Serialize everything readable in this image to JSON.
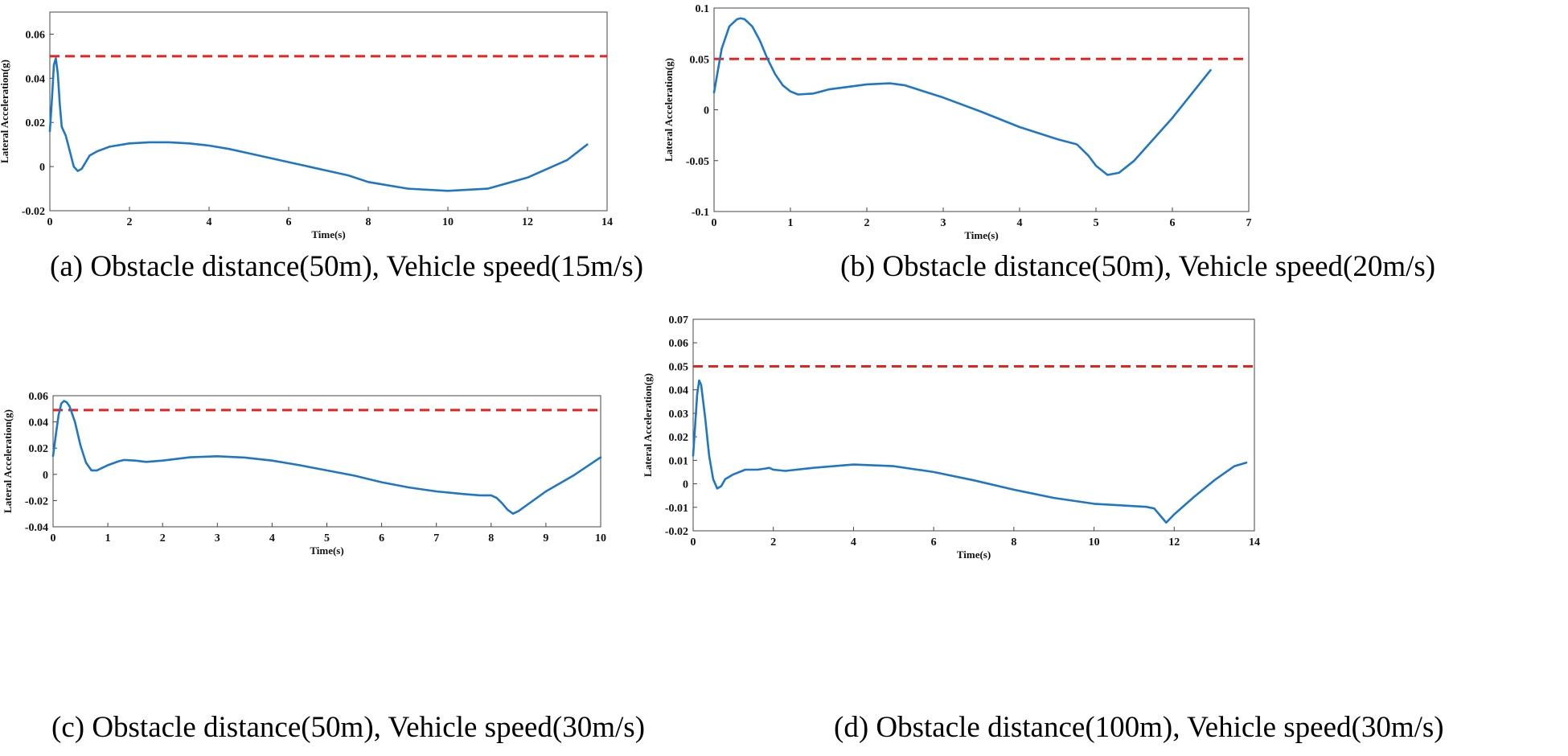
{
  "chart_data": [
    {
      "type": "line",
      "caption": "(a) Obstacle distance(50m), Vehicle speed(15m/s)",
      "xlabel": "Time(s)",
      "ylabel": "Lateral Acceleration(g)",
      "xlim": [
        0,
        14
      ],
      "ylim": [
        -0.02,
        0.07
      ],
      "xticks": [
        "0",
        "2",
        "4",
        "6",
        "8",
        "10",
        "12",
        "14"
      ],
      "yticks": [
        "-0.02",
        "0",
        "0.02",
        "0.04",
        "0.06"
      ],
      "threshold": 0.05,
      "series": [
        {
          "name": "lateral acceleration",
          "x": [
            0,
            0.05,
            0.1,
            0.15,
            0.2,
            0.25,
            0.3,
            0.35,
            0.4,
            0.5,
            0.6,
            0.7,
            0.8,
            0.9,
            1.0,
            1.2,
            1.5,
            2.0,
            2.5,
            3.0,
            3.5,
            4.0,
            4.5,
            5.0,
            6.0,
            7.0,
            7.5,
            8.0,
            9.0,
            10.0,
            11.0,
            12.0,
            13.0,
            13.5
          ],
          "y": [
            0.016,
            0.03,
            0.046,
            0.049,
            0.042,
            0.028,
            0.018,
            0.016,
            0.014,
            0.007,
            0.0,
            -0.002,
            -0.001,
            0.002,
            0.005,
            0.007,
            0.009,
            0.0105,
            0.011,
            0.011,
            0.0105,
            0.0095,
            0.008,
            0.006,
            0.002,
            -0.002,
            -0.004,
            -0.007,
            -0.01,
            -0.011,
            -0.01,
            -0.005,
            0.003,
            0.01
          ]
        }
      ]
    },
    {
      "type": "line",
      "caption": "(b) Obstacle distance(50m), Vehicle speed(20m/s)",
      "xlabel": "Time(s)",
      "ylabel": "Lateral Acceleration(g)",
      "xlim": [
        0,
        7
      ],
      "ylim": [
        -0.1,
        0.1
      ],
      "xticks": [
        "0",
        "1",
        "2",
        "3",
        "4",
        "5",
        "6",
        "7"
      ],
      "yticks": [
        "-0.1",
        "-0.05",
        "0",
        "0.05",
        "0.1"
      ],
      "threshold": 0.05,
      "series": [
        {
          "name": "lateral acceleration",
          "x": [
            0,
            0.1,
            0.2,
            0.3,
            0.35,
            0.4,
            0.5,
            0.6,
            0.7,
            0.8,
            0.9,
            1.0,
            1.1,
            1.3,
            1.5,
            2.0,
            2.3,
            2.5,
            3.0,
            3.5,
            4.0,
            4.5,
            4.75,
            4.9,
            5.0,
            5.15,
            5.3,
            5.5,
            6.0,
            6.5
          ],
          "y": [
            0.017,
            0.06,
            0.082,
            0.089,
            0.09,
            0.089,
            0.082,
            0.068,
            0.05,
            0.035,
            0.024,
            0.018,
            0.015,
            0.016,
            0.02,
            0.025,
            0.026,
            0.024,
            0.012,
            -0.002,
            -0.017,
            -0.029,
            -0.034,
            -0.045,
            -0.055,
            -0.064,
            -0.062,
            -0.05,
            -0.008,
            0.039
          ]
        }
      ]
    },
    {
      "type": "line",
      "caption": "(c) Obstacle distance(50m), Vehicle speed(30m/s)",
      "xlabel": "Time(s)",
      "ylabel": "Lateral Acceleration(g)",
      "xlim": [
        0,
        10
      ],
      "ylim": [
        -0.04,
        0.06
      ],
      "xticks": [
        "0",
        "1",
        "2",
        "3",
        "4",
        "5",
        "6",
        "7",
        "8",
        "9",
        "10"
      ],
      "yticks": [
        "-0.04",
        "-0.02",
        "0",
        "0.02",
        "0.04",
        "0.06"
      ],
      "threshold": 0.049,
      "series": [
        {
          "name": "lateral acceleration",
          "x": [
            0,
            0.05,
            0.1,
            0.15,
            0.2,
            0.25,
            0.3,
            0.4,
            0.5,
            0.6,
            0.7,
            0.8,
            1.0,
            1.2,
            1.3,
            1.5,
            1.7,
            2.0,
            2.5,
            3.0,
            3.5,
            4.0,
            4.5,
            5.0,
            5.5,
            6.0,
            6.5,
            7.0,
            7.5,
            7.8,
            8.0,
            8.1,
            8.2,
            8.3,
            8.4,
            8.5,
            9.0,
            9.5,
            10.0
          ],
          "y": [
            0.014,
            0.03,
            0.045,
            0.054,
            0.056,
            0.055,
            0.052,
            0.04,
            0.022,
            0.009,
            0.003,
            0.003,
            0.007,
            0.01,
            0.011,
            0.0105,
            0.0095,
            0.0105,
            0.013,
            0.0138,
            0.0128,
            0.0105,
            0.007,
            0.003,
            -0.001,
            -0.006,
            -0.01,
            -0.013,
            -0.015,
            -0.016,
            -0.016,
            -0.018,
            -0.022,
            -0.027,
            -0.03,
            -0.028,
            -0.013,
            -0.001,
            0.013
          ]
        }
      ]
    },
    {
      "type": "line",
      "caption": "(d) Obstacle distance(100m), Vehicle speed(30m/s)",
      "xlabel": "Time(s)",
      "ylabel": "Lateral Acceleration(g)",
      "xlim": [
        0,
        14
      ],
      "ylim": [
        -0.02,
        0.07
      ],
      "xticks": [
        "0",
        "2",
        "4",
        "6",
        "8",
        "10",
        "12",
        "14"
      ],
      "yticks": [
        "-0.02",
        "-0.01",
        "0",
        "0.01",
        "0.02",
        "0.03",
        "0.04",
        "0.05",
        "0.06",
        "0.07"
      ],
      "threshold": 0.05,
      "series": [
        {
          "name": "lateral acceleration",
          "x": [
            0,
            0.05,
            0.1,
            0.15,
            0.2,
            0.3,
            0.4,
            0.5,
            0.6,
            0.7,
            0.8,
            1.0,
            1.3,
            1.6,
            1.8,
            1.9,
            2.0,
            2.3,
            3.0,
            4.0,
            5.0,
            6.0,
            7.0,
            8.0,
            9.0,
            10.0,
            11.0,
            11.3,
            11.5,
            11.7,
            11.8,
            12.0,
            12.5,
            13.0,
            13.5,
            13.8
          ],
          "y": [
            0.012,
            0.025,
            0.038,
            0.044,
            0.042,
            0.028,
            0.012,
            0.002,
            -0.002,
            -0.001,
            0.002,
            0.004,
            0.006,
            0.006,
            0.0065,
            0.0068,
            0.006,
            0.0055,
            0.0068,
            0.0082,
            0.0075,
            0.005,
            0.0015,
            -0.0025,
            -0.006,
            -0.0085,
            -0.0095,
            -0.0098,
            -0.0105,
            -0.0145,
            -0.0165,
            -0.013,
            -0.0055,
            0.0015,
            0.0075,
            0.009
          ]
        }
      ]
    }
  ],
  "colors": {
    "line": "#1f77c4",
    "threshold": "#e8231e",
    "axis": "#444444",
    "grid": "#d8d8d8"
  }
}
